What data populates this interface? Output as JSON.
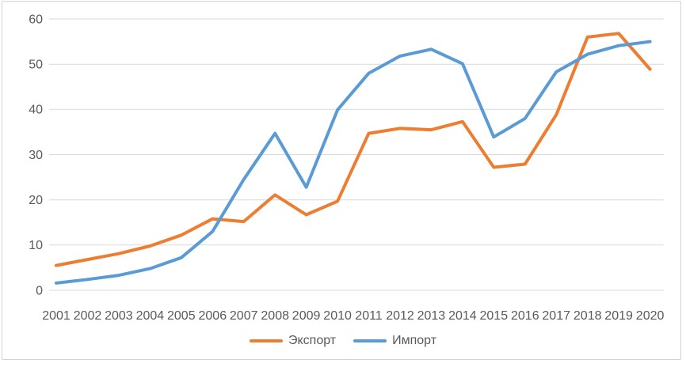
{
  "window": {
    "background_color": "#ffffff",
    "border_color": "#d3d3d3"
  },
  "chart_data": {
    "type": "line",
    "title": "",
    "xlabel": "",
    "ylabel": "",
    "categories": [
      "2001",
      "2002",
      "2003",
      "2004",
      "2005",
      "2006",
      "2007",
      "2008",
      "2009",
      "2010",
      "2011",
      "2012",
      "2013",
      "2014",
      "2015",
      "2016",
      "2017",
      "2018",
      "2019",
      "2020"
    ],
    "series": [
      {
        "name": "Экспорт",
        "color": "#ED7D31",
        "values": [
          5.5,
          6.8,
          8.1,
          9.8,
          12.2,
          15.8,
          15.2,
          21.1,
          16.7,
          19.7,
          34.7,
          35.8,
          35.5,
          37.3,
          27.2,
          27.9,
          38.8,
          56.0,
          56.8,
          48.9
        ]
      },
      {
        "name": "Импорт",
        "color": "#5B9BD5",
        "values": [
          1.6,
          2.4,
          3.3,
          4.8,
          7.2,
          13.0,
          24.5,
          34.7,
          22.8,
          39.9,
          48.0,
          51.8,
          53.3,
          50.1,
          33.9,
          38.0,
          48.3,
          52.2,
          54.1,
          55.0
        ]
      }
    ],
    "ylim": [
      0,
      60
    ],
    "yticks": [
      0,
      10,
      20,
      30,
      40,
      50,
      60
    ],
    "grid": "horizontal",
    "gridline_color": "#D9D9D9",
    "axis_label_color": "#595959",
    "legend_position": "bottom"
  }
}
